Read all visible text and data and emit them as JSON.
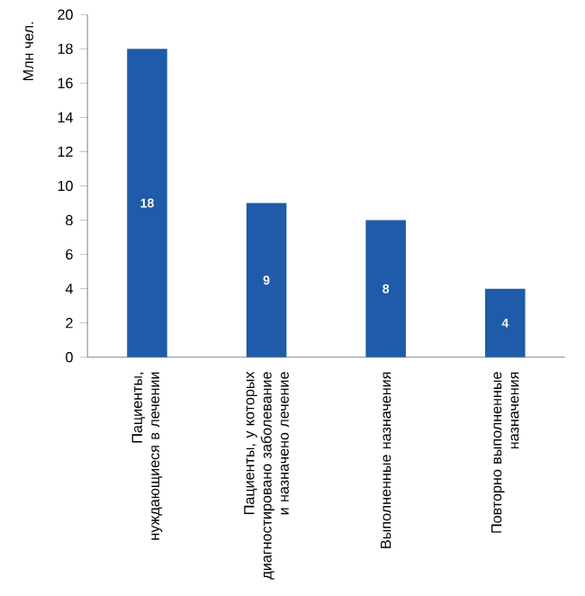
{
  "chart_data": {
    "type": "bar",
    "ylabel": "Млн чел.",
    "categories": [
      "Пациенты, нуждающиеся в лечении",
      "Пациенты, у которых диагностировано заболевание и назначено лечение",
      "Выполненные назначения",
      "Повторно выполненные назначения"
    ],
    "values": [
      18,
      9,
      8,
      4
    ],
    "color": "#1f5ba8",
    "data_labels": true,
    "ylim": [
      0,
      20
    ],
    "yticks": [
      0,
      2,
      4,
      6,
      8,
      10,
      12,
      14,
      16,
      18,
      20
    ]
  }
}
